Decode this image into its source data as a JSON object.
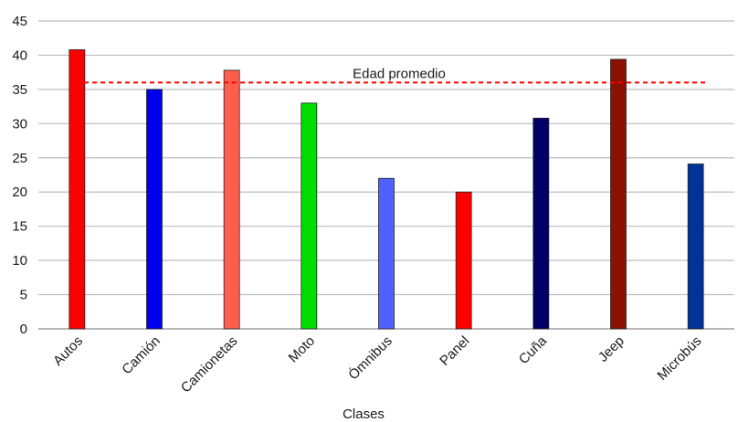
{
  "chart_data": {
    "type": "bar",
    "title": "",
    "xlabel": "Clases",
    "ylabel": "",
    "ylim": [
      0,
      45
    ],
    "yticks": [
      0,
      5,
      10,
      15,
      20,
      25,
      30,
      35,
      40,
      45
    ],
    "grid": true,
    "categories": [
      "Autos",
      "Camión",
      "Camionetas",
      "Moto",
      "Ómnibus",
      "Panel",
      "Cuña",
      "Jeep",
      "Microbús"
    ],
    "values": [
      40.8,
      35.0,
      37.8,
      33.0,
      22.0,
      20.0,
      30.8,
      39.4,
      24.1
    ],
    "colors": [
      "#ff0000",
      "#0000ee",
      "#ff5f4a",
      "#00dd00",
      "#4f61ff",
      "#ff0000",
      "#000066",
      "#8b1200",
      "#003399"
    ],
    "reference_line": {
      "label": "Edad promedio",
      "value": 36,
      "color": "#ff0000",
      "style": "dashed"
    }
  }
}
